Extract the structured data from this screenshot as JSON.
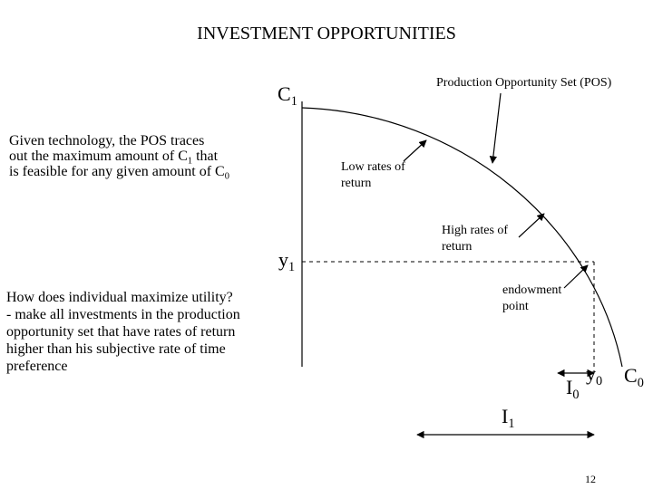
{
  "title": "INVESTMENT OPPORTUNITIES",
  "axes": {
    "y_axis_label": {
      "base": "C",
      "sub": "1"
    },
    "x_axis_label": {
      "base": "C",
      "sub": "0"
    }
  },
  "points": {
    "y1": {
      "base": "y",
      "sub": "1"
    },
    "y0": {
      "base": "y",
      "sub": "0"
    }
  },
  "investments": {
    "I0": {
      "base": "I",
      "sub": "0"
    },
    "I1": {
      "base": "I",
      "sub": "1"
    }
  },
  "annotations": {
    "pos_label": "Production Opportunity Set (POS)",
    "low_rates_line1": "Low rates of",
    "low_rates_line2": "return",
    "high_rates_line1": "High rates of",
    "high_rates_line2": "return",
    "endowment_line1": "endowment",
    "endowment_line2": "point"
  },
  "text_blocks": {
    "pos_explanation": {
      "line1": "Given technology, the POS traces",
      "line2_pre": "out the maximum amount of C",
      "line2_sub": "1",
      "line2_post": " that",
      "line3_pre": "is feasible for any given amount of C",
      "line3_sub": "0"
    },
    "utility_question": {
      "line1": "How does individual maximize utility?",
      "line2": "- make all investments in the production",
      "line3": "opportunity set that have rates of return",
      "line4": "higher than his subjective rate of time",
      "line5": "preference"
    }
  },
  "page_number": "12"
}
